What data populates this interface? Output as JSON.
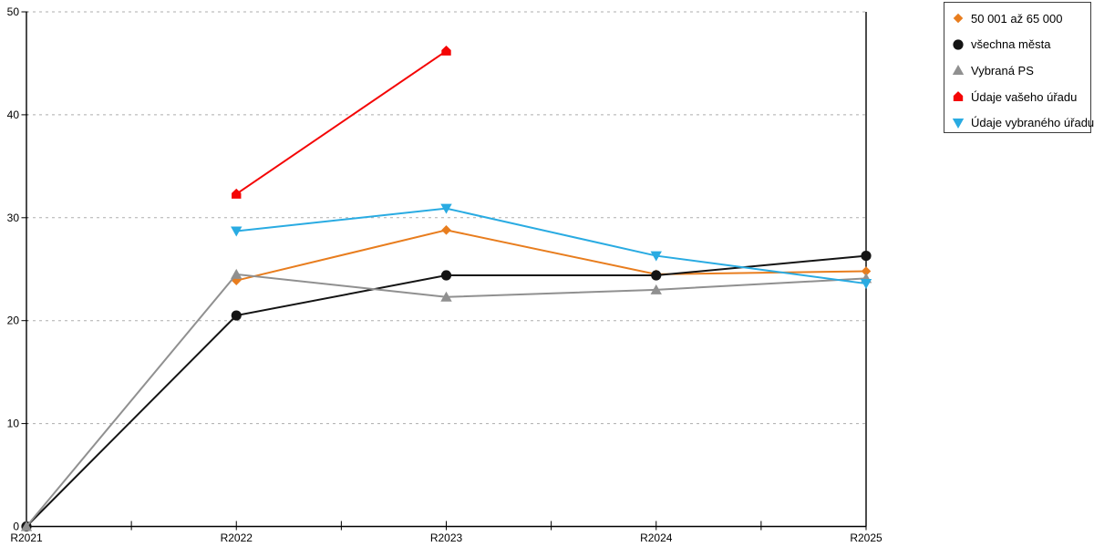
{
  "chart_data": {
    "type": "line",
    "title": "",
    "xlabel": "",
    "ylabel": "",
    "categories": [
      "R2021",
      "R2022",
      "R2023",
      "R2024",
      "R2025"
    ],
    "y_ticks": [
      0,
      10,
      20,
      30,
      40,
      50
    ],
    "ylim": [
      0,
      50
    ],
    "grid": "horizontal-dashed",
    "legend_position": "outside-top-right",
    "colors": {
      "axis": "#000000",
      "gridline": "#ADADAD",
      "legend_border": "#3c3c3c",
      "background": "#ffffff"
    },
    "series": [
      {
        "name": "50 001 až 65 000",
        "color": "#E87D1E",
        "marker": "diamond",
        "values": [
          null,
          23.9,
          28.8,
          24.5,
          24.8
        ]
      },
      {
        "name": "všechna města",
        "color": "#141414",
        "marker": "circle",
        "values": [
          0,
          20.5,
          24.4,
          24.4,
          26.3
        ]
      },
      {
        "name": "Vybraná PS",
        "color": "#909090",
        "marker": "triangle-up",
        "values": [
          0,
          24.5,
          22.3,
          23.0,
          24.1
        ]
      },
      {
        "name": "Údaje vašeho úřadu",
        "color": "#F40505",
        "marker": "pentagon",
        "values": [
          null,
          32.3,
          46.2,
          null,
          null
        ]
      },
      {
        "name": "Údaje vybraného úřadu",
        "color": "#29ABE2",
        "marker": "triangle-down",
        "values": [
          null,
          28.7,
          30.9,
          26.3,
          23.6
        ]
      }
    ]
  }
}
